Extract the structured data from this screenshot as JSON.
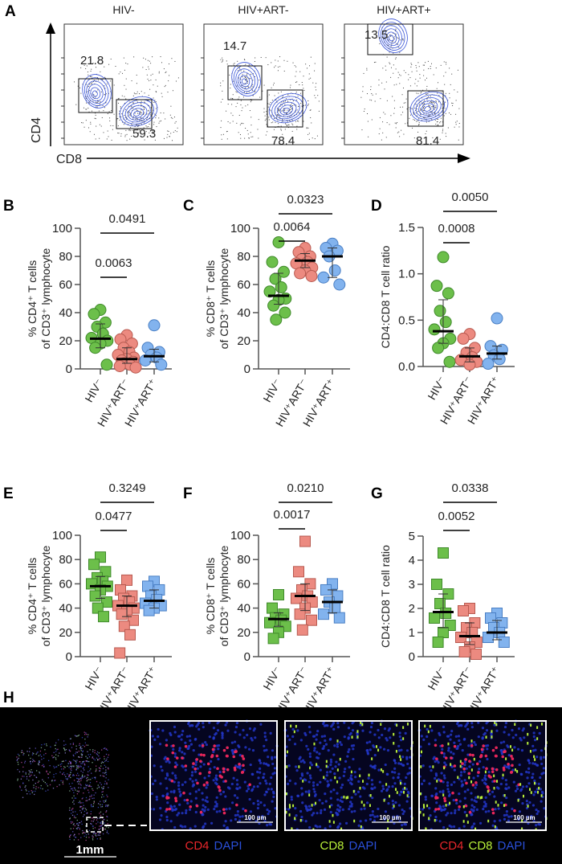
{
  "panel_letters": [
    "A",
    "B",
    "C",
    "D",
    "E",
    "F",
    "G",
    "H"
  ],
  "flow": {
    "x_axis_label": "CD8",
    "y_axis_label": "CD4",
    "plots": [
      {
        "title": "HIV-",
        "cd4_gate": "21.8",
        "cd8_gate": "59.3"
      },
      {
        "title": "HIV+ART-",
        "cd4_gate": "14.7",
        "cd8_gate": "78.4"
      },
      {
        "title": "HIV+ART+",
        "cd4_gate": "13.5",
        "cd8_gate": "81.4"
      }
    ],
    "contour_color": "#3a55d9"
  },
  "colors": {
    "HIV-": "#6cbf4a",
    "HIV+ART-": "#ec8a80",
    "HIV+ART+": "#82b3ee"
  },
  "chart_data": [
    {
      "panel": "B",
      "type": "scatter",
      "marker": "circle",
      "ylabel": [
        "% CD4⁺ T cells",
        "of CD3⁺ lymphocyte"
      ],
      "ylim": [
        0,
        100
      ],
      "yticks": [
        "0",
        "20",
        "40",
        "60",
        "80",
        "100"
      ],
      "categories": [
        "HIV⁻",
        "HIV⁺ART⁻",
        "HIV⁺ART⁺"
      ],
      "groups": [
        {
          "values": [
            42,
            39,
            33,
            30,
            25,
            22,
            20,
            18,
            15,
            3
          ],
          "median": 21.5,
          "error": [
            15,
            32
          ]
        },
        {
          "values": [
            24,
            21,
            18,
            15,
            12,
            10,
            8,
            7,
            6,
            5,
            4,
            3,
            2,
            1
          ],
          "median": 7,
          "error": [
            4,
            15
          ]
        },
        {
          "values": [
            31,
            15,
            12,
            10,
            8,
            6,
            3
          ],
          "median": 9,
          "error": [
            5,
            14
          ]
        }
      ],
      "comparisons": [
        {
          "groups": [
            0,
            1
          ],
          "p": "0.0063"
        },
        {
          "groups": [
            0,
            2
          ],
          "p": "0.0491"
        }
      ]
    },
    {
      "panel": "C",
      "type": "scatter",
      "marker": "circle",
      "ylabel": [
        "% CD8⁺ T cells",
        "of CD3⁺ lymphocyte"
      ],
      "ylim": [
        0,
        100
      ],
      "yticks": [
        "0",
        "20",
        "40",
        "60",
        "80",
        "100"
      ],
      "categories": [
        "HIV⁻",
        "HIV⁺ART⁻",
        "HIV⁺ART⁺"
      ],
      "groups": [
        {
          "values": [
            90,
            76,
            69,
            64,
            58,
            55,
            50,
            49,
            45,
            40,
            35
          ],
          "median": 52,
          "error": [
            46,
            68
          ]
        },
        {
          "values": [
            86,
            83,
            80,
            78,
            76,
            75,
            72,
            70,
            68,
            66
          ],
          "median": 77,
          "error": [
            72,
            82
          ]
        },
        {
          "values": [
            89,
            86,
            84,
            80,
            70,
            65,
            60
          ],
          "median": 80,
          "error": [
            65,
            86
          ]
        }
      ],
      "comparisons": [
        {
          "groups": [
            0,
            1
          ],
          "p": "0.0064"
        },
        {
          "groups": [
            0,
            2
          ],
          "p": "0.0323"
        }
      ]
    },
    {
      "panel": "D",
      "type": "scatter",
      "marker": "circle",
      "ylabel": [
        "CD4:CD8 T cell ratio"
      ],
      "ylim": [
        0,
        1.5
      ],
      "yticks": [
        "0.0",
        "0.5",
        "1.0",
        "1.5"
      ],
      "categories": [
        "HIV⁻",
        "HIV⁺ART⁻",
        "HIV⁺ART⁺"
      ],
      "groups": [
        {
          "values": [
            1.18,
            0.87,
            0.79,
            0.6,
            0.48,
            0.4,
            0.3,
            0.25,
            0.2,
            0.05
          ],
          "median": 0.38,
          "error": [
            0.25,
            0.72
          ]
        },
        {
          "values": [
            0.35,
            0.3,
            0.2,
            0.15,
            0.1,
            0.07,
            0.05,
            0.02
          ],
          "median": 0.11,
          "error": [
            0.05,
            0.2
          ]
        },
        {
          "values": [
            0.52,
            0.22,
            0.18,
            0.12,
            0.08,
            0.03
          ],
          "median": 0.14,
          "error": [
            0.08,
            0.22
          ]
        }
      ],
      "comparisons": [
        {
          "groups": [
            0,
            1
          ],
          "p": "0.0008"
        },
        {
          "groups": [
            0,
            2
          ],
          "p": "0.0050"
        }
      ]
    },
    {
      "panel": "E",
      "type": "scatter",
      "marker": "square",
      "ylabel": [
        "% CD4⁺ T cells",
        "of CD3⁺ lymphocyte"
      ],
      "ylim": [
        0,
        100
      ],
      "yticks": [
        "0",
        "20",
        "40",
        "60",
        "80",
        "100"
      ],
      "categories": [
        "HIV⁻",
        "HIV⁺ART⁻",
        "HIV⁺ART⁺"
      ],
      "groups": [
        {
          "values": [
            82,
            76,
            70,
            65,
            62,
            60,
            58,
            55,
            50,
            45,
            40,
            33
          ],
          "median": 58,
          "error": [
            48,
            66
          ]
        },
        {
          "values": [
            63,
            55,
            50,
            48,
            45,
            42,
            40,
            38,
            35,
            30,
            25,
            18,
            3
          ],
          "median": 42,
          "error": [
            33,
            50
          ]
        },
        {
          "values": [
            62,
            58,
            55,
            50,
            47,
            44,
            42,
            40,
            38
          ],
          "median": 46,
          "error": [
            40,
            55
          ]
        }
      ],
      "comparisons": [
        {
          "groups": [
            0,
            1
          ],
          "p": "0.0477"
        },
        {
          "groups": [
            0,
            2
          ],
          "p": "0.3249"
        }
      ]
    },
    {
      "panel": "F",
      "type": "scatter",
      "marker": "square",
      "ylabel": [
        "% CD8⁺ T cells",
        "of CD3⁺ lymphocyte"
      ],
      "ylim": [
        0,
        100
      ],
      "yticks": [
        "0",
        "20",
        "40",
        "60",
        "80",
        "100"
      ],
      "categories": [
        "HIV⁻",
        "HIV⁺ART⁻",
        "HIV⁺ART⁺"
      ],
      "groups": [
        {
          "values": [
            51,
            40,
            35,
            32,
            30,
            28,
            25,
            20,
            15
          ],
          "median": 31,
          "error": [
            25,
            36
          ]
        },
        {
          "values": [
            95,
            70,
            60,
            55,
            50,
            48,
            45,
            40,
            35,
            30,
            22
          ],
          "median": 50,
          "error": [
            38,
            60
          ]
        },
        {
          "values": [
            60,
            55,
            50,
            45,
            40,
            35,
            32
          ],
          "median": 45,
          "error": [
            36,
            55
          ]
        }
      ],
      "comparisons": [
        {
          "groups": [
            0,
            1
          ],
          "p": "0.0017"
        },
        {
          "groups": [
            0,
            2
          ],
          "p": "0.0210"
        }
      ]
    },
    {
      "panel": "G",
      "type": "scatter",
      "marker": "square",
      "ylabel": [
        "CD4:CD8 T cell ratio"
      ],
      "ylim": [
        0,
        5
      ],
      "yticks": [
        "0",
        "1",
        "2",
        "3",
        "4",
        "5"
      ],
      "categories": [
        "HIV⁻",
        "HIV⁺ART⁻",
        "HIV⁺ART⁺"
      ],
      "groups": [
        {
          "values": [
            4.3,
            3.0,
            2.6,
            2.2,
            1.8,
            1.6,
            1.3,
            1.0,
            0.6
          ],
          "median": 1.85,
          "error": [
            1.2,
            2.6
          ]
        },
        {
          "values": [
            2.0,
            1.9,
            1.4,
            1.2,
            1.0,
            0.8,
            0.6,
            0.4,
            0.2,
            0.1
          ],
          "median": 0.85,
          "error": [
            0.5,
            1.4
          ]
        },
        {
          "values": [
            1.8,
            1.6,
            1.4,
            1.2,
            1.0,
            0.8,
            0.6
          ],
          "median": 1.0,
          "error": [
            0.7,
            1.5
          ]
        }
      ],
      "comparisons": [
        {
          "groups": [
            0,
            1
          ],
          "p": "0.0052"
        },
        {
          "groups": [
            0,
            2
          ],
          "p": "0.0338"
        }
      ]
    }
  ],
  "microscopy": {
    "overview_scale": "1mm",
    "inset_scale": "100 µm",
    "panels": [
      {
        "labels": [
          {
            "text": "CD4",
            "color": "#e8262b"
          },
          {
            "text": "DAPI",
            "color": "#2a4fd8"
          }
        ]
      },
      {
        "labels": [
          {
            "text": "CD8",
            "color": "#b9f03a"
          },
          {
            "text": "DAPI",
            "color": "#2a4fd8"
          }
        ]
      },
      {
        "labels": [
          {
            "text": "CD4",
            "color": "#e8262b"
          },
          {
            "text": "CD8",
            "color": "#b9f03a"
          },
          {
            "text": "DAPI",
            "color": "#2a4fd8"
          }
        ]
      }
    ]
  }
}
